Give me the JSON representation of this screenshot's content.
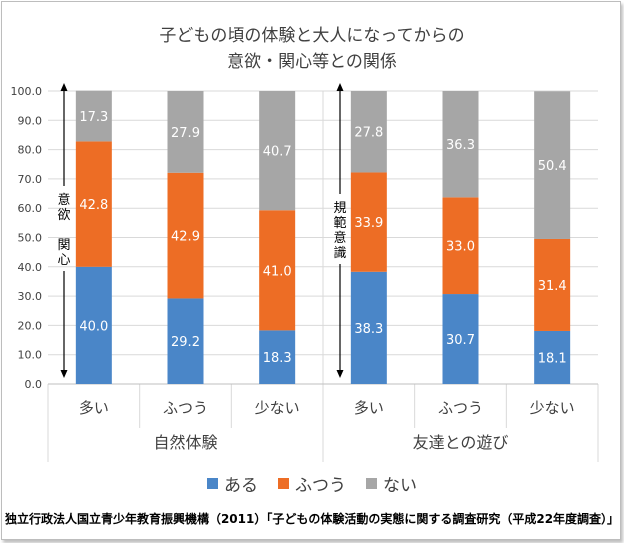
{
  "title_line1": "子どもの頃の体験と大人になってからの",
  "title_line2": "意欲・関心等との関係",
  "source": "独立行政法人国立青少年教育振興機構（2011）「子どもの体験活動の実態に関する調査研究（平成22年度調査）」",
  "annotations": {
    "left": [
      "意",
      "欲",
      "",
      "関",
      "心"
    ],
    "right": [
      "規",
      "範",
      "意",
      "識"
    ]
  },
  "legend": [
    {
      "label": "ある",
      "color": "#4a86c8"
    },
    {
      "label": "ふつう",
      "color": "#ed6d25"
    },
    {
      "label": "ない",
      "color": "#a6a6a6"
    }
  ],
  "chart_data": {
    "type": "bar",
    "stacked": true,
    "groups": [
      {
        "label": "自然体験",
        "categories": [
          "多い",
          "ふつう",
          "少ない"
        ]
      },
      {
        "label": "友達との遊び",
        "categories": [
          "多い",
          "ふつう",
          "少ない"
        ]
      }
    ],
    "categories": [
      "多い",
      "ふつう",
      "少ない",
      "多い",
      "ふつう",
      "少ない"
    ],
    "series": [
      {
        "name": "ある",
        "color": "#4a86c8",
        "values": [
          40.0,
          29.2,
          18.3,
          38.3,
          30.7,
          18.1
        ]
      },
      {
        "name": "ふつう",
        "color": "#ed6d25",
        "values": [
          42.8,
          42.9,
          41.0,
          33.9,
          33.0,
          31.4
        ]
      },
      {
        "name": "ない",
        "color": "#a6a6a6",
        "values": [
          17.3,
          27.9,
          40.7,
          27.8,
          36.3,
          50.4
        ]
      }
    ],
    "value_labels": [
      [
        "40.0",
        "29.2",
        "18.3",
        "38.3",
        "30.7",
        "18.1"
      ],
      [
        "42.8",
        "42.9",
        "41.0",
        "33.9",
        "33.0",
        "31.4"
      ],
      [
        "17.3",
        "27.9",
        "40.7",
        "27.8",
        "36.3",
        "50.4"
      ]
    ],
    "yticks": [
      "0.0",
      "10.0",
      "20.0",
      "30.0",
      "40.0",
      "50.0",
      "60.0",
      "70.0",
      "80.0",
      "90.0",
      "100.0"
    ],
    "ylim": [
      0,
      100
    ],
    "legend_position": "bottom"
  }
}
